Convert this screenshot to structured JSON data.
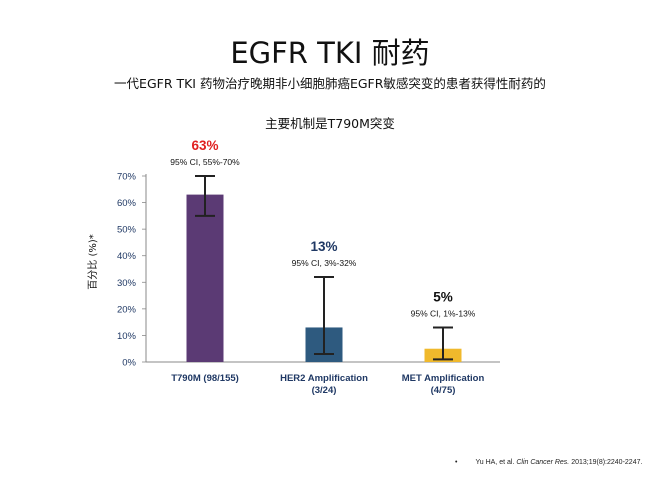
{
  "title": "EGFR TKI 耐药",
  "subtitle_line1": "一代EGFR TKI 药物治疗晚期非小细胞肺癌EGFR敏感突变的患者获得性耐药的",
  "subtitle_line2": "主要机制是T790M突变",
  "footnote": {
    "bullet": "•",
    "authors": "Yu HA, et al.",
    "journal": "Clin Cancer Res.",
    "citation": "2013;19(8):2240-2247."
  },
  "chart_data": {
    "type": "bar",
    "ylabel": "百分比 (%)*",
    "ylim": [
      0,
      70
    ],
    "yticks": [
      "0%",
      "10%",
      "20%",
      "30%",
      "40%",
      "50%",
      "60%",
      "70%"
    ],
    "grid": false,
    "categories": [
      [
        "T790M (98/155)"
      ],
      [
        "HER2 Amplification",
        "(3/24)"
      ],
      [
        "MET Amplification",
        "(4/75)"
      ]
    ],
    "values": [
      63,
      13,
      5
    ],
    "error_low": [
      55,
      3,
      1
    ],
    "error_high": [
      70,
      32,
      13
    ],
    "value_labels": [
      "63%",
      "13%",
      "5%"
    ],
    "ci_labels": [
      "95% CI, 55%-70%",
      "95% CI, 3%-32%",
      "95% CI, 1%-13%"
    ],
    "bar_colors": [
      "#5b3a74",
      "#2e5a7f",
      "#f0b92c"
    ],
    "value_label_colors": [
      "#e02020",
      "#1f3864",
      "#111111"
    ],
    "category_label_color": "#1f3864",
    "tick_label_color": "#1f3864"
  }
}
